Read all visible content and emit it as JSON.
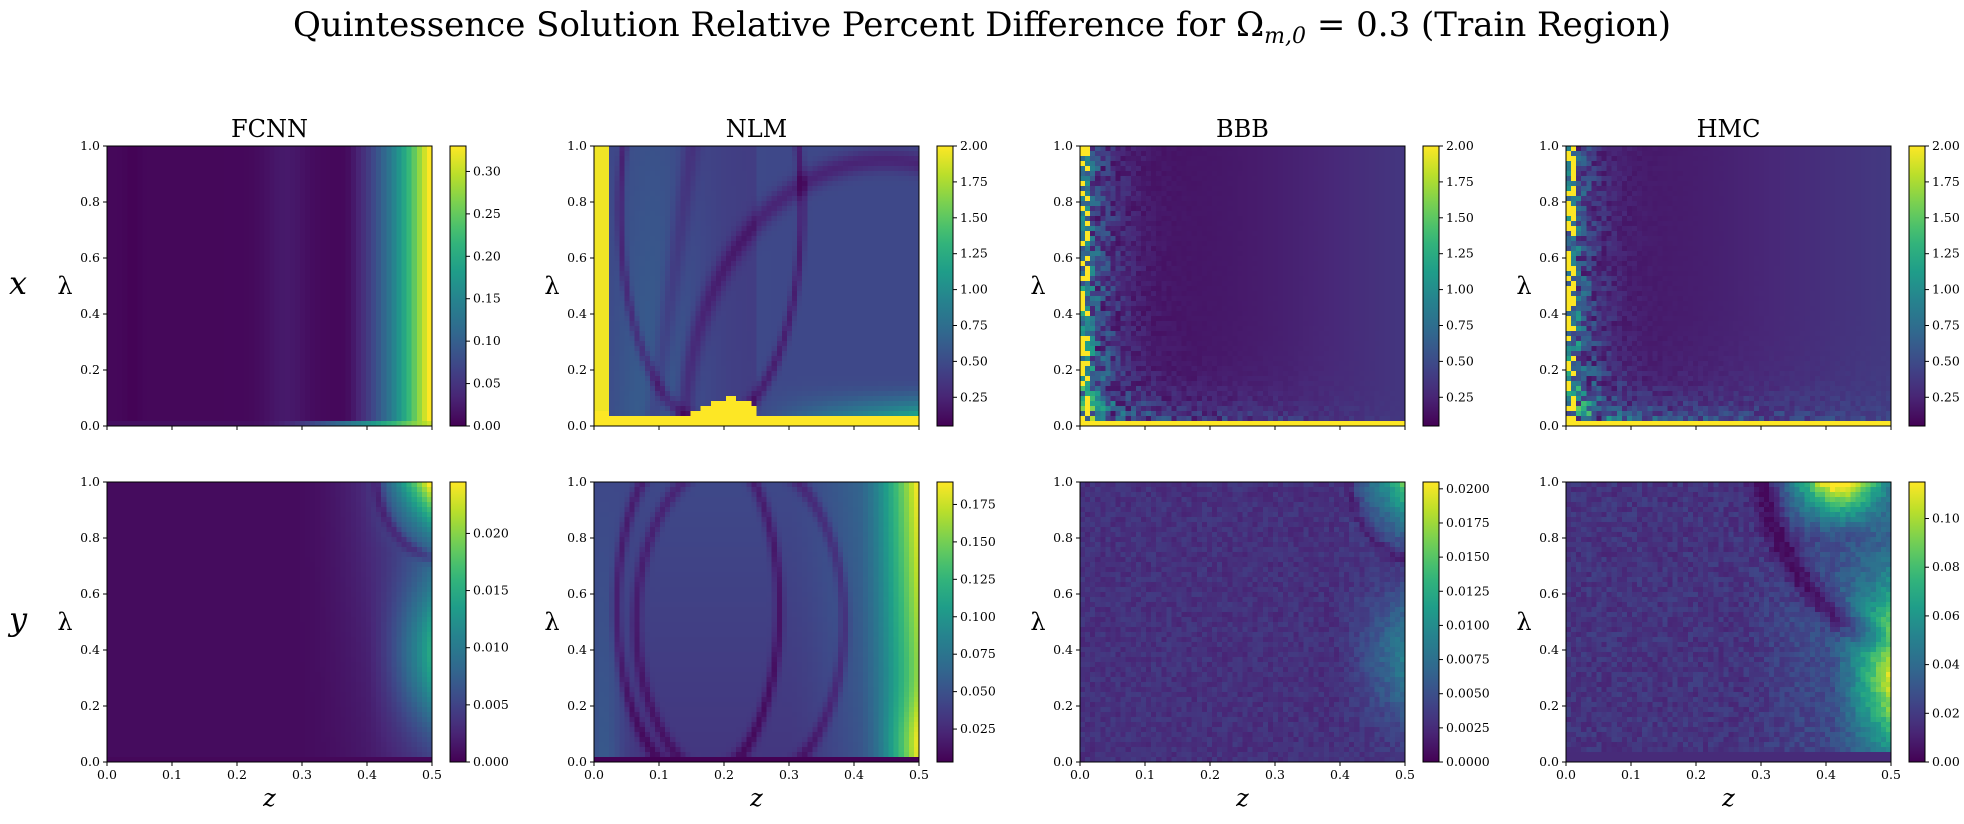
{
  "title": "Quintessence Solution Relative Percent Difference for Ω_{m,0} = 0.3 (Train Region)",
  "title_segments": {
    "prefix": "Quintessence Solution Relative Percent Difference for ",
    "omega": "Ω",
    "omega_sub": "m,0",
    "suffix": " = 0.3 (Train Region)"
  },
  "colormap": "viridis",
  "colors": {
    "viridis": [
      "#440154",
      "#482878",
      "#3e4989",
      "#31688e",
      "#26828e",
      "#1f9e89",
      "#35b779",
      "#6ece58",
      "#b5de2b",
      "#fde725"
    ]
  },
  "chart_data": {
    "type": "heatmap",
    "columns": [
      "FCNN",
      "NLM",
      "BBB",
      "HMC"
    ],
    "rows": [
      "x",
      "y"
    ],
    "xlabel": "z",
    "ylabel": "λ",
    "xlim": [
      0.0,
      0.5
    ],
    "ylim": [
      0.0,
      1.0
    ],
    "x_ticks": [
      "0.0",
      "0.1",
      "0.2",
      "0.3",
      "0.4",
      "0.5"
    ],
    "y_ticks": [
      "0.0",
      "0.2",
      "0.4",
      "0.6",
      "0.8",
      "1.0"
    ],
    "panels": [
      {
        "row": "x",
        "method": "FCNN",
        "pattern": "x_fcnn",
        "clim": [
          0,
          0.33
        ],
        "colorbar_ticks": [
          "0.00",
          "0.05",
          "0.10",
          "0.15",
          "0.20",
          "0.25",
          "0.30"
        ],
        "colorbar_values": [
          0,
          0.05,
          0.1,
          0.15,
          0.2,
          0.25,
          0.3
        ]
      },
      {
        "row": "x",
        "method": "NLM",
        "pattern": "x_nlm",
        "clim": [
          0.05,
          2.0
        ],
        "colorbar_ticks": [
          "0.25",
          "0.50",
          "0.75",
          "1.00",
          "1.25",
          "1.50",
          "1.75",
          "2.00"
        ],
        "colorbar_values": [
          0.25,
          0.5,
          0.75,
          1.0,
          1.25,
          1.5,
          1.75,
          2.0
        ]
      },
      {
        "row": "x",
        "method": "BBB",
        "pattern": "x_bbb",
        "clim": [
          0.05,
          2.0
        ],
        "colorbar_ticks": [
          "0.25",
          "0.50",
          "0.75",
          "1.00",
          "1.25",
          "1.50",
          "1.75",
          "2.00"
        ],
        "colorbar_values": [
          0.25,
          0.5,
          0.75,
          1.0,
          1.25,
          1.5,
          1.75,
          2.0
        ]
      },
      {
        "row": "x",
        "method": "HMC",
        "pattern": "x_hmc",
        "clim": [
          0.05,
          2.0
        ],
        "colorbar_ticks": [
          "0.25",
          "0.50",
          "0.75",
          "1.00",
          "1.25",
          "1.50",
          "1.75",
          "2.00"
        ],
        "colorbar_values": [
          0.25,
          0.5,
          0.75,
          1.0,
          1.25,
          1.5,
          1.75,
          2.0
        ]
      },
      {
        "row": "y",
        "method": "FCNN",
        "pattern": "y_fcnn",
        "clim": [
          0,
          0.0245
        ],
        "colorbar_ticks": [
          "0.000",
          "0.005",
          "0.010",
          "0.015",
          "0.020"
        ],
        "colorbar_values": [
          0,
          0.005,
          0.01,
          0.015,
          0.02
        ]
      },
      {
        "row": "y",
        "method": "NLM",
        "pattern": "y_nlm",
        "clim": [
          0.003,
          0.19
        ],
        "colorbar_ticks": [
          "0.025",
          "0.050",
          "0.075",
          "0.100",
          "0.125",
          "0.150",
          "0.175"
        ],
        "colorbar_values": [
          0.025,
          0.05,
          0.075,
          0.1,
          0.125,
          0.15,
          0.175
        ]
      },
      {
        "row": "y",
        "method": "BBB",
        "pattern": "y_bbb",
        "clim": [
          0,
          0.0205
        ],
        "colorbar_ticks": [
          "0.0000",
          "0.0025",
          "0.0050",
          "0.0075",
          "0.0100",
          "0.0125",
          "0.0150",
          "0.0175",
          "0.0200"
        ],
        "colorbar_values": [
          0,
          0.0025,
          0.005,
          0.0075,
          0.01,
          0.0125,
          0.015,
          0.0175,
          0.02
        ]
      },
      {
        "row": "y",
        "method": "HMC",
        "pattern": "y_hmc",
        "clim": [
          0,
          0.115
        ],
        "colorbar_ticks": [
          "0.00",
          "0.02",
          "0.04",
          "0.06",
          "0.08",
          "0.10"
        ],
        "colorbar_values": [
          0,
          0.02,
          0.04,
          0.06,
          0.08,
          0.1
        ]
      }
    ]
  }
}
